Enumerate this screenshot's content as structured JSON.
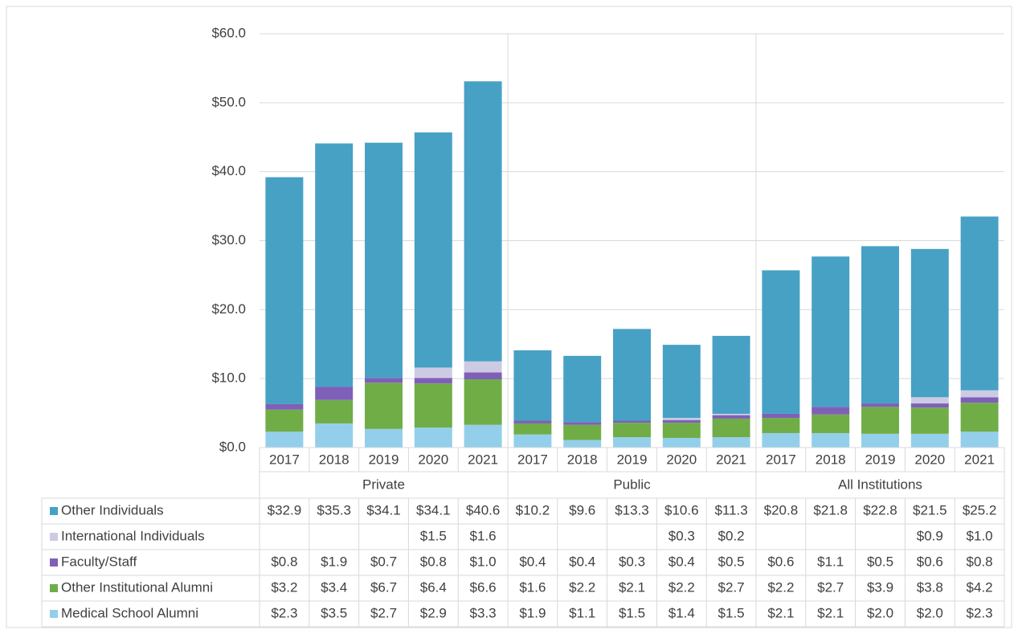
{
  "chart_data": {
    "type": "stacked_bar",
    "groups": [
      {
        "name": "Private",
        "categories": [
          "2017",
          "2018",
          "2019",
          "2020",
          "2021"
        ]
      },
      {
        "name": "Public",
        "categories": [
          "2017",
          "2018",
          "2019",
          "2020",
          "2021"
        ]
      },
      {
        "name": "All Institutions",
        "categories": [
          "2017",
          "2018",
          "2019",
          "2020",
          "2021"
        ]
      }
    ],
    "series": [
      {
        "name": "Other Individuals",
        "color": "#47a1c4",
        "values": [
          32.9,
          35.3,
          34.1,
          34.1,
          40.6,
          10.2,
          9.6,
          13.3,
          10.6,
          11.3,
          20.8,
          21.8,
          22.8,
          21.5,
          25.2
        ],
        "value_labels": [
          "$32.9",
          "$35.3",
          "$34.1",
          "$34.1",
          "$40.6",
          "$10.2",
          "$9.6",
          "$13.3",
          "$10.6",
          "$11.3",
          "$20.8",
          "$21.8",
          "$22.8",
          "$21.5",
          "$25.2"
        ]
      },
      {
        "name": "International Individuals",
        "color": "#cdcbe4",
        "values": [
          null,
          null,
          null,
          1.5,
          1.6,
          null,
          null,
          null,
          0.3,
          0.2,
          null,
          null,
          null,
          0.9,
          1.0
        ],
        "value_labels": [
          null,
          null,
          null,
          "$1.5",
          "$1.6",
          null,
          null,
          null,
          "$0.3",
          "$0.2",
          null,
          null,
          null,
          "$0.9",
          "$1.0"
        ]
      },
      {
        "name": "Faculty/Staff",
        "color": "#7f60b8",
        "values": [
          0.8,
          1.9,
          0.7,
          0.8,
          1.0,
          0.4,
          0.4,
          0.3,
          0.4,
          0.5,
          0.6,
          1.1,
          0.5,
          0.6,
          0.8
        ],
        "value_labels": [
          "$0.8",
          "$1.9",
          "$0.7",
          "$0.8",
          "$1.0",
          "$0.4",
          "$0.4",
          "$0.3",
          "$0.4",
          "$0.5",
          "$0.6",
          "$1.1",
          "$0.5",
          "$0.6",
          "$0.8"
        ]
      },
      {
        "name": "Other Institutional Alumni",
        "color": "#70ad47",
        "values": [
          3.2,
          3.4,
          6.7,
          6.4,
          6.6,
          1.6,
          2.2,
          2.1,
          2.2,
          2.7,
          2.2,
          2.7,
          3.9,
          3.8,
          4.2
        ],
        "value_labels": [
          "$3.2",
          "$3.4",
          "$6.7",
          "$6.4",
          "$6.6",
          "$1.6",
          "$2.2",
          "$2.1",
          "$2.2",
          "$2.7",
          "$2.2",
          "$2.7",
          "$3.9",
          "$3.8",
          "$4.2"
        ]
      },
      {
        "name": "Medical School Alumni",
        "color": "#93cfea",
        "values": [
          2.3,
          3.5,
          2.7,
          2.9,
          3.3,
          1.9,
          1.1,
          1.5,
          1.4,
          1.5,
          2.1,
          2.1,
          2.0,
          2.0,
          2.3
        ],
        "value_labels": [
          "$2.3",
          "$3.5",
          "$2.7",
          "$2.9",
          "$3.3",
          "$1.9",
          "$1.1",
          "$1.5",
          "$1.4",
          "$1.5",
          "$2.1",
          "$2.1",
          "$2.0",
          "$2.0",
          "$2.3"
        ]
      }
    ],
    "ylim": [
      0,
      60
    ],
    "yticks": [
      {
        "value": 0,
        "label": "$0.0"
      },
      {
        "value": 10,
        "label": "$10.0"
      },
      {
        "value": 20,
        "label": "$20.0"
      },
      {
        "value": 30,
        "label": "$30.0"
      },
      {
        "value": 40,
        "label": "$40.0"
      },
      {
        "value": 50,
        "label": "$50.0"
      },
      {
        "value": 60,
        "label": "$60.0"
      }
    ],
    "grid": true
  }
}
